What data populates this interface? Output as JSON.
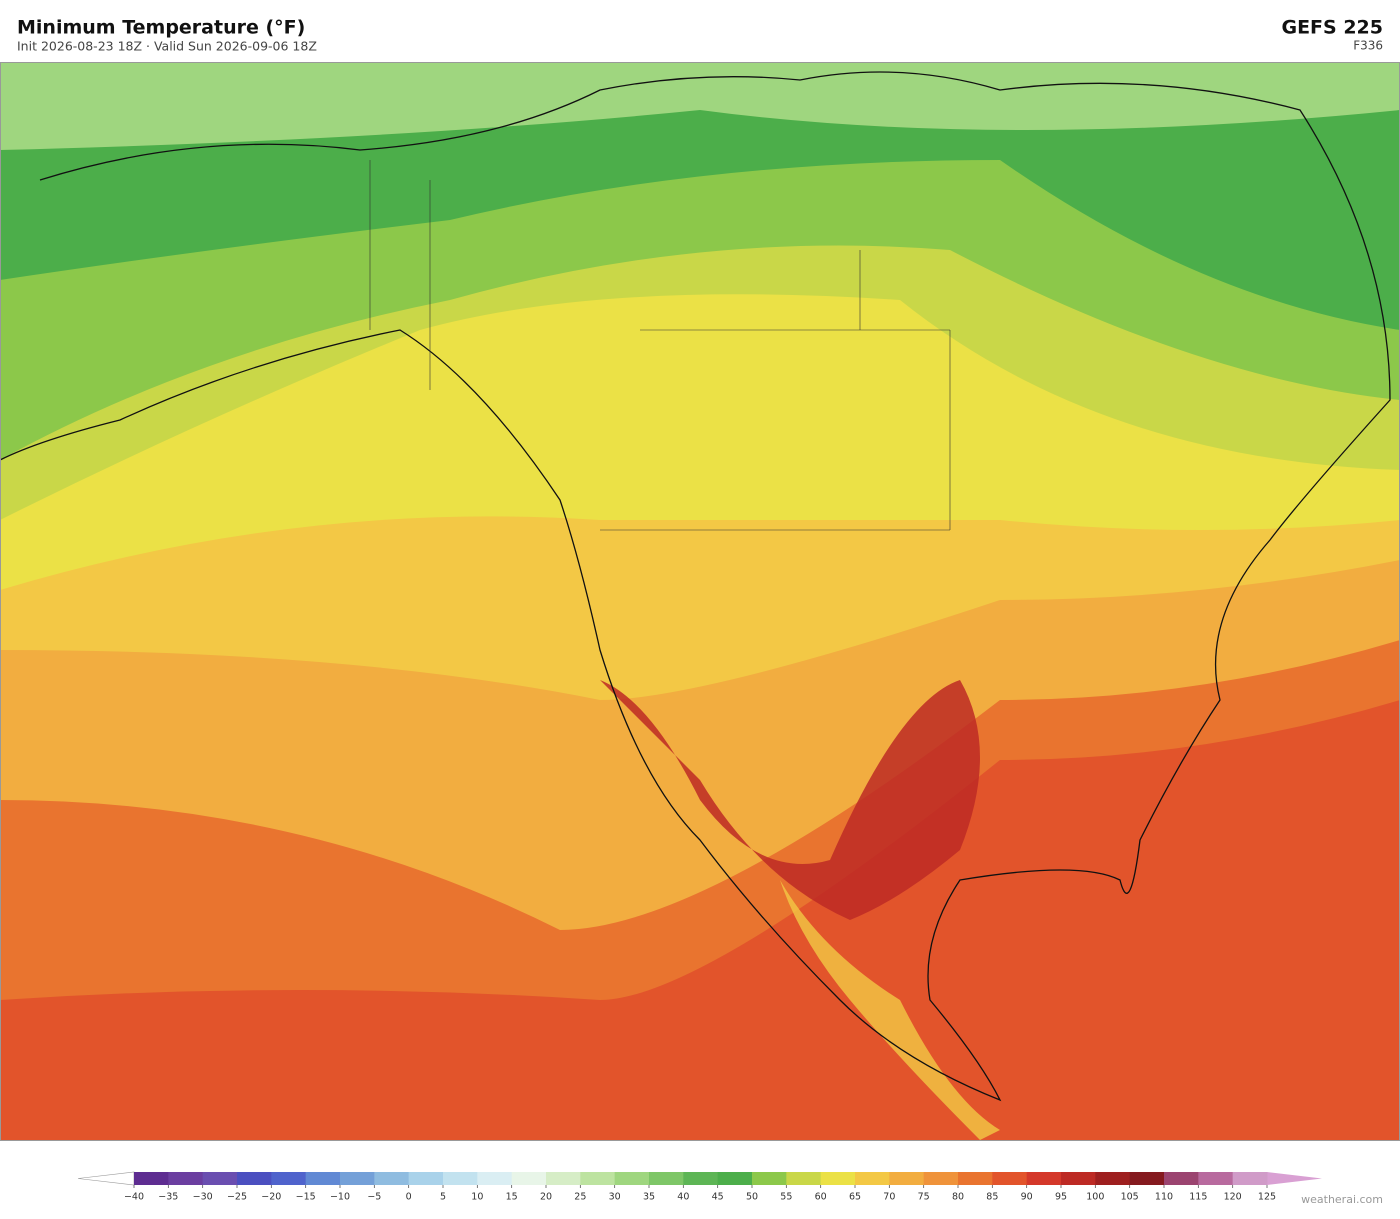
{
  "header": {
    "title": "Minimum Temperature  (°F)",
    "subtitle": "Init 2026-08-23 18Z   ·   Valid Sun 2026-09-06 18Z",
    "model": "GEFS  225",
    "forecast_hour": "F336"
  },
  "colorbar": {
    "ticks": [
      {
        "value": -40,
        "label": "−40"
      },
      {
        "value": -35,
        "label": "−35"
      },
      {
        "value": -30,
        "label": "−30"
      },
      {
        "value": -25,
        "label": "−25"
      },
      {
        "value": -20,
        "label": "−20"
      },
      {
        "value": -15,
        "label": "−15"
      },
      {
        "value": -10,
        "label": "−10"
      },
      {
        "value": -5,
        "label": "−5"
      },
      0,
      5,
      10,
      15,
      20,
      25,
      30,
      35,
      40,
      45,
      50,
      55,
      60,
      65,
      70,
      75,
      80,
      85,
      90,
      95,
      100,
      105,
      110,
      115,
      120,
      125
    ],
    "colors": [
      "#5e2d91",
      "#6b3ea0",
      "#6a4eb0",
      "#4b4fc0",
      "#4f63cc",
      "#6189d4",
      "#74a0d8",
      "#8fbce0",
      "#a9d2ea",
      "#c2e2ef",
      "#daeef3",
      "#e8f5e8",
      "#d6edc6",
      "#bde3a0",
      "#9fd67f",
      "#7ec667",
      "#5db555",
      "#4cae4a",
      "#8cc84a",
      "#c9d748",
      "#ebe146",
      "#f3c845",
      "#f2ad40",
      "#ef933b",
      "#e9742f",
      "#e2542b",
      "#d4382a",
      "#bd2a24",
      "#9e1f1f",
      "#851a1f",
      "#9b4470",
      "#b86a9e",
      "#d09bc8"
    ],
    "under_color": "#ffffff",
    "over_color": "#d9a0d3"
  },
  "footer": {
    "credit": "weatherai.com"
  }
}
